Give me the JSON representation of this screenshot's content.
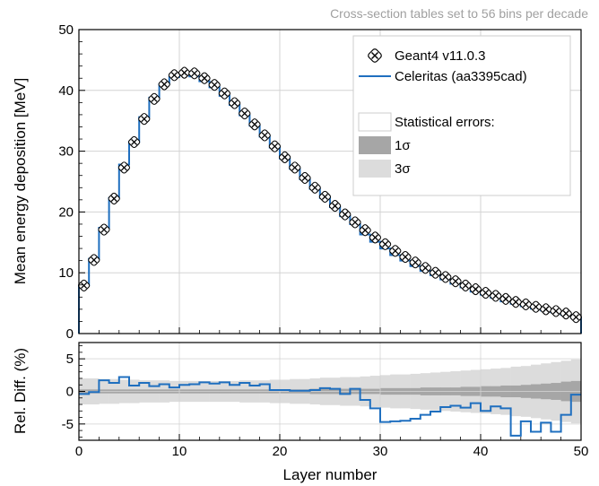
{
  "colors": {
    "geant": "#000000",
    "celeritas": "#1f6fbf",
    "band_1sigma": "#a6a6a6",
    "band_3sigma": "#dcdcdc",
    "grid": "#d3d3d3",
    "subtitle": "#a0a0a0"
  },
  "chart_data": [
    {
      "type": "line",
      "title": "",
      "subtitle": "Cross-section tables set to 56 bins per decade",
      "xlabel": "",
      "ylabel": "Mean energy deposition [MeV]",
      "xlim": [
        0,
        50
      ],
      "ylim": [
        0,
        50
      ],
      "xticks": [
        0,
        10,
        20,
        30,
        40,
        50
      ],
      "yticks": [
        0,
        10,
        20,
        30,
        40,
        50
      ],
      "x_tick_labels_visible": false,
      "grid": true,
      "legend_placement": "top-right",
      "legend": {
        "series": [
          "Geant4 v11.0.3",
          "Celeritas (aa3395cad)"
        ],
        "errors_title": "Statistical errors:",
        "band_labels": [
          "1σ",
          "3σ"
        ]
      },
      "series": [
        {
          "name": "Geant4 v11.0.3",
          "marker": "x-in-box",
          "x": [
            0.5,
            1.5,
            2.5,
            3.5,
            4.5,
            5.5,
            6.5,
            7.5,
            8.5,
            9.5,
            10.5,
            11.5,
            12.5,
            13.5,
            14.5,
            15.5,
            16.5,
            17.5,
            18.5,
            19.5,
            20.5,
            21.5,
            22.5,
            23.5,
            24.5,
            25.5,
            26.5,
            27.5,
            28.5,
            29.5,
            30.5,
            31.5,
            32.5,
            33.5,
            34.5,
            35.5,
            36.5,
            37.5,
            38.5,
            39.5,
            40.5,
            41.5,
            42.5,
            43.5,
            44.5,
            45.5,
            46.5,
            47.5,
            48.5,
            49.5
          ],
          "values": [
            7.9,
            12.1,
            17.1,
            22.2,
            27.3,
            31.5,
            35.3,
            38.6,
            41.0,
            42.5,
            42.9,
            42.8,
            42.0,
            40.9,
            39.5,
            37.9,
            36.2,
            34.4,
            32.6,
            30.8,
            29.0,
            27.3,
            25.6,
            24.0,
            22.5,
            21.0,
            19.6,
            18.3,
            17.0,
            15.8,
            14.7,
            13.6,
            12.6,
            11.7,
            10.8,
            10.0,
            9.3,
            8.6,
            7.9,
            7.3,
            6.7,
            6.2,
            5.7,
            5.2,
            4.8,
            4.4,
            4.0,
            3.7,
            3.3,
            2.7
          ]
        },
        {
          "name": "Celeritas (aa3395cad)",
          "style": "step",
          "x": [
            0.5,
            1.5,
            2.5,
            3.5,
            4.5,
            5.5,
            6.5,
            7.5,
            8.5,
            9.5,
            10.5,
            11.5,
            12.5,
            13.5,
            14.5,
            15.5,
            16.5,
            17.5,
            18.5,
            19.5,
            20.5,
            21.5,
            22.5,
            23.5,
            24.5,
            25.5,
            26.5,
            27.5,
            28.5,
            29.5,
            30.5,
            31.5,
            32.5,
            33.5,
            34.5,
            35.5,
            36.5,
            37.5,
            38.5,
            39.5,
            40.5,
            41.5,
            42.5,
            43.5,
            44.5,
            45.5,
            46.5,
            47.5,
            48.5,
            49.5
          ],
          "values": [
            7.9,
            12.3,
            17.4,
            22.3,
            27.8,
            31.5,
            35.6,
            38.8,
            41.0,
            42.2,
            42.6,
            42.3,
            41.5,
            40.5,
            39.1,
            37.6,
            35.9,
            34.2,
            32.4,
            30.6,
            28.8,
            27.1,
            25.4,
            23.8,
            22.3,
            20.8,
            19.3,
            18.0,
            16.3,
            15.1,
            14.0,
            12.9,
            12.0,
            11.1,
            10.3,
            9.6,
            8.9,
            8.2,
            7.6,
            6.9,
            6.4,
            5.9,
            5.3,
            4.9,
            4.5,
            4.1,
            3.8,
            3.5,
            3.1,
            2.6
          ]
        }
      ]
    },
    {
      "type": "line",
      "title": "",
      "xlabel": "Layer number",
      "ylabel": "Rel. Diff. (%)",
      "xlim": [
        0,
        50
      ],
      "ylim": [
        -7.5,
        7.5
      ],
      "xticks": [
        0,
        10,
        20,
        30,
        40,
        50
      ],
      "yticks": [
        -5,
        0,
        5
      ],
      "grid": true,
      "x": [
        0.5,
        1.5,
        2.5,
        3.5,
        4.5,
        5.5,
        6.5,
        7.5,
        8.5,
        9.5,
        10.5,
        11.5,
        12.5,
        13.5,
        14.5,
        15.5,
        16.5,
        17.5,
        18.5,
        19.5,
        20.5,
        21.5,
        22.5,
        23.5,
        24.5,
        25.5,
        26.5,
        27.5,
        28.5,
        29.5,
        30.5,
        31.5,
        32.5,
        33.5,
        34.5,
        35.5,
        36.5,
        37.5,
        38.5,
        39.5,
        40.5,
        41.5,
        42.5,
        43.5,
        44.5,
        45.5,
        46.5,
        47.5,
        48.5,
        49.5
      ],
      "series": [
        {
          "name": "Celeritas (aa3395cad)",
          "style": "step",
          "values": [
            -0.4,
            -0.1,
            1.7,
            1.3,
            2.2,
            0.9,
            1.3,
            0.8,
            1.1,
            0.6,
            1.0,
            1.1,
            1.4,
            1.2,
            1.4,
            1.0,
            1.3,
            0.9,
            1.1,
            0.2,
            0.2,
            0.1,
            0.1,
            0.2,
            0.5,
            0.4,
            -0.4,
            0.4,
            -1.3,
            -2.6,
            -4.7,
            -4.6,
            -4.5,
            -4.2,
            -3.6,
            -3.1,
            -2.4,
            -2.2,
            -2.5,
            -1.8,
            -3.0,
            -2.3,
            -2.6,
            -6.8,
            -4.6,
            -6.2,
            -4.8,
            -6.2,
            -3.6,
            -0.5
          ]
        }
      ],
      "band_1sigma": [
        0.3,
        0.3,
        0.3,
        0.3,
        0.3,
        0.3,
        0.3,
        0.3,
        0.3,
        0.3,
        0.3,
        0.3,
        0.3,
        0.3,
        0.3,
        0.3,
        0.3,
        0.3,
        0.3,
        0.3,
        0.3,
        0.3,
        0.3,
        0.4,
        0.4,
        0.4,
        0.4,
        0.4,
        0.4,
        0.4,
        0.5,
        0.5,
        0.5,
        0.5,
        0.6,
        0.6,
        0.6,
        0.6,
        0.7,
        0.7,
        0.8,
        0.8,
        0.9,
        0.9,
        1.0,
        1.1,
        1.2,
        1.3,
        1.5,
        1.6
      ],
      "band_3sigma": [
        2.0,
        2.0,
        1.9,
        1.9,
        1.8,
        1.8,
        1.7,
        1.7,
        1.7,
        1.6,
        1.6,
        1.6,
        1.6,
        1.6,
        1.6,
        1.6,
        1.7,
        1.7,
        1.7,
        1.8,
        1.8,
        1.9,
        1.9,
        2.0,
        2.1,
        2.1,
        2.2,
        2.2,
        2.3,
        2.4,
        2.5,
        2.6,
        2.6,
        2.7,
        2.8,
        2.9,
        3.0,
        3.1,
        3.2,
        3.3,
        3.4,
        3.5,
        3.6,
        3.8,
        3.9,
        4.1,
        4.3,
        4.5,
        4.7,
        4.9
      ]
    }
  ]
}
